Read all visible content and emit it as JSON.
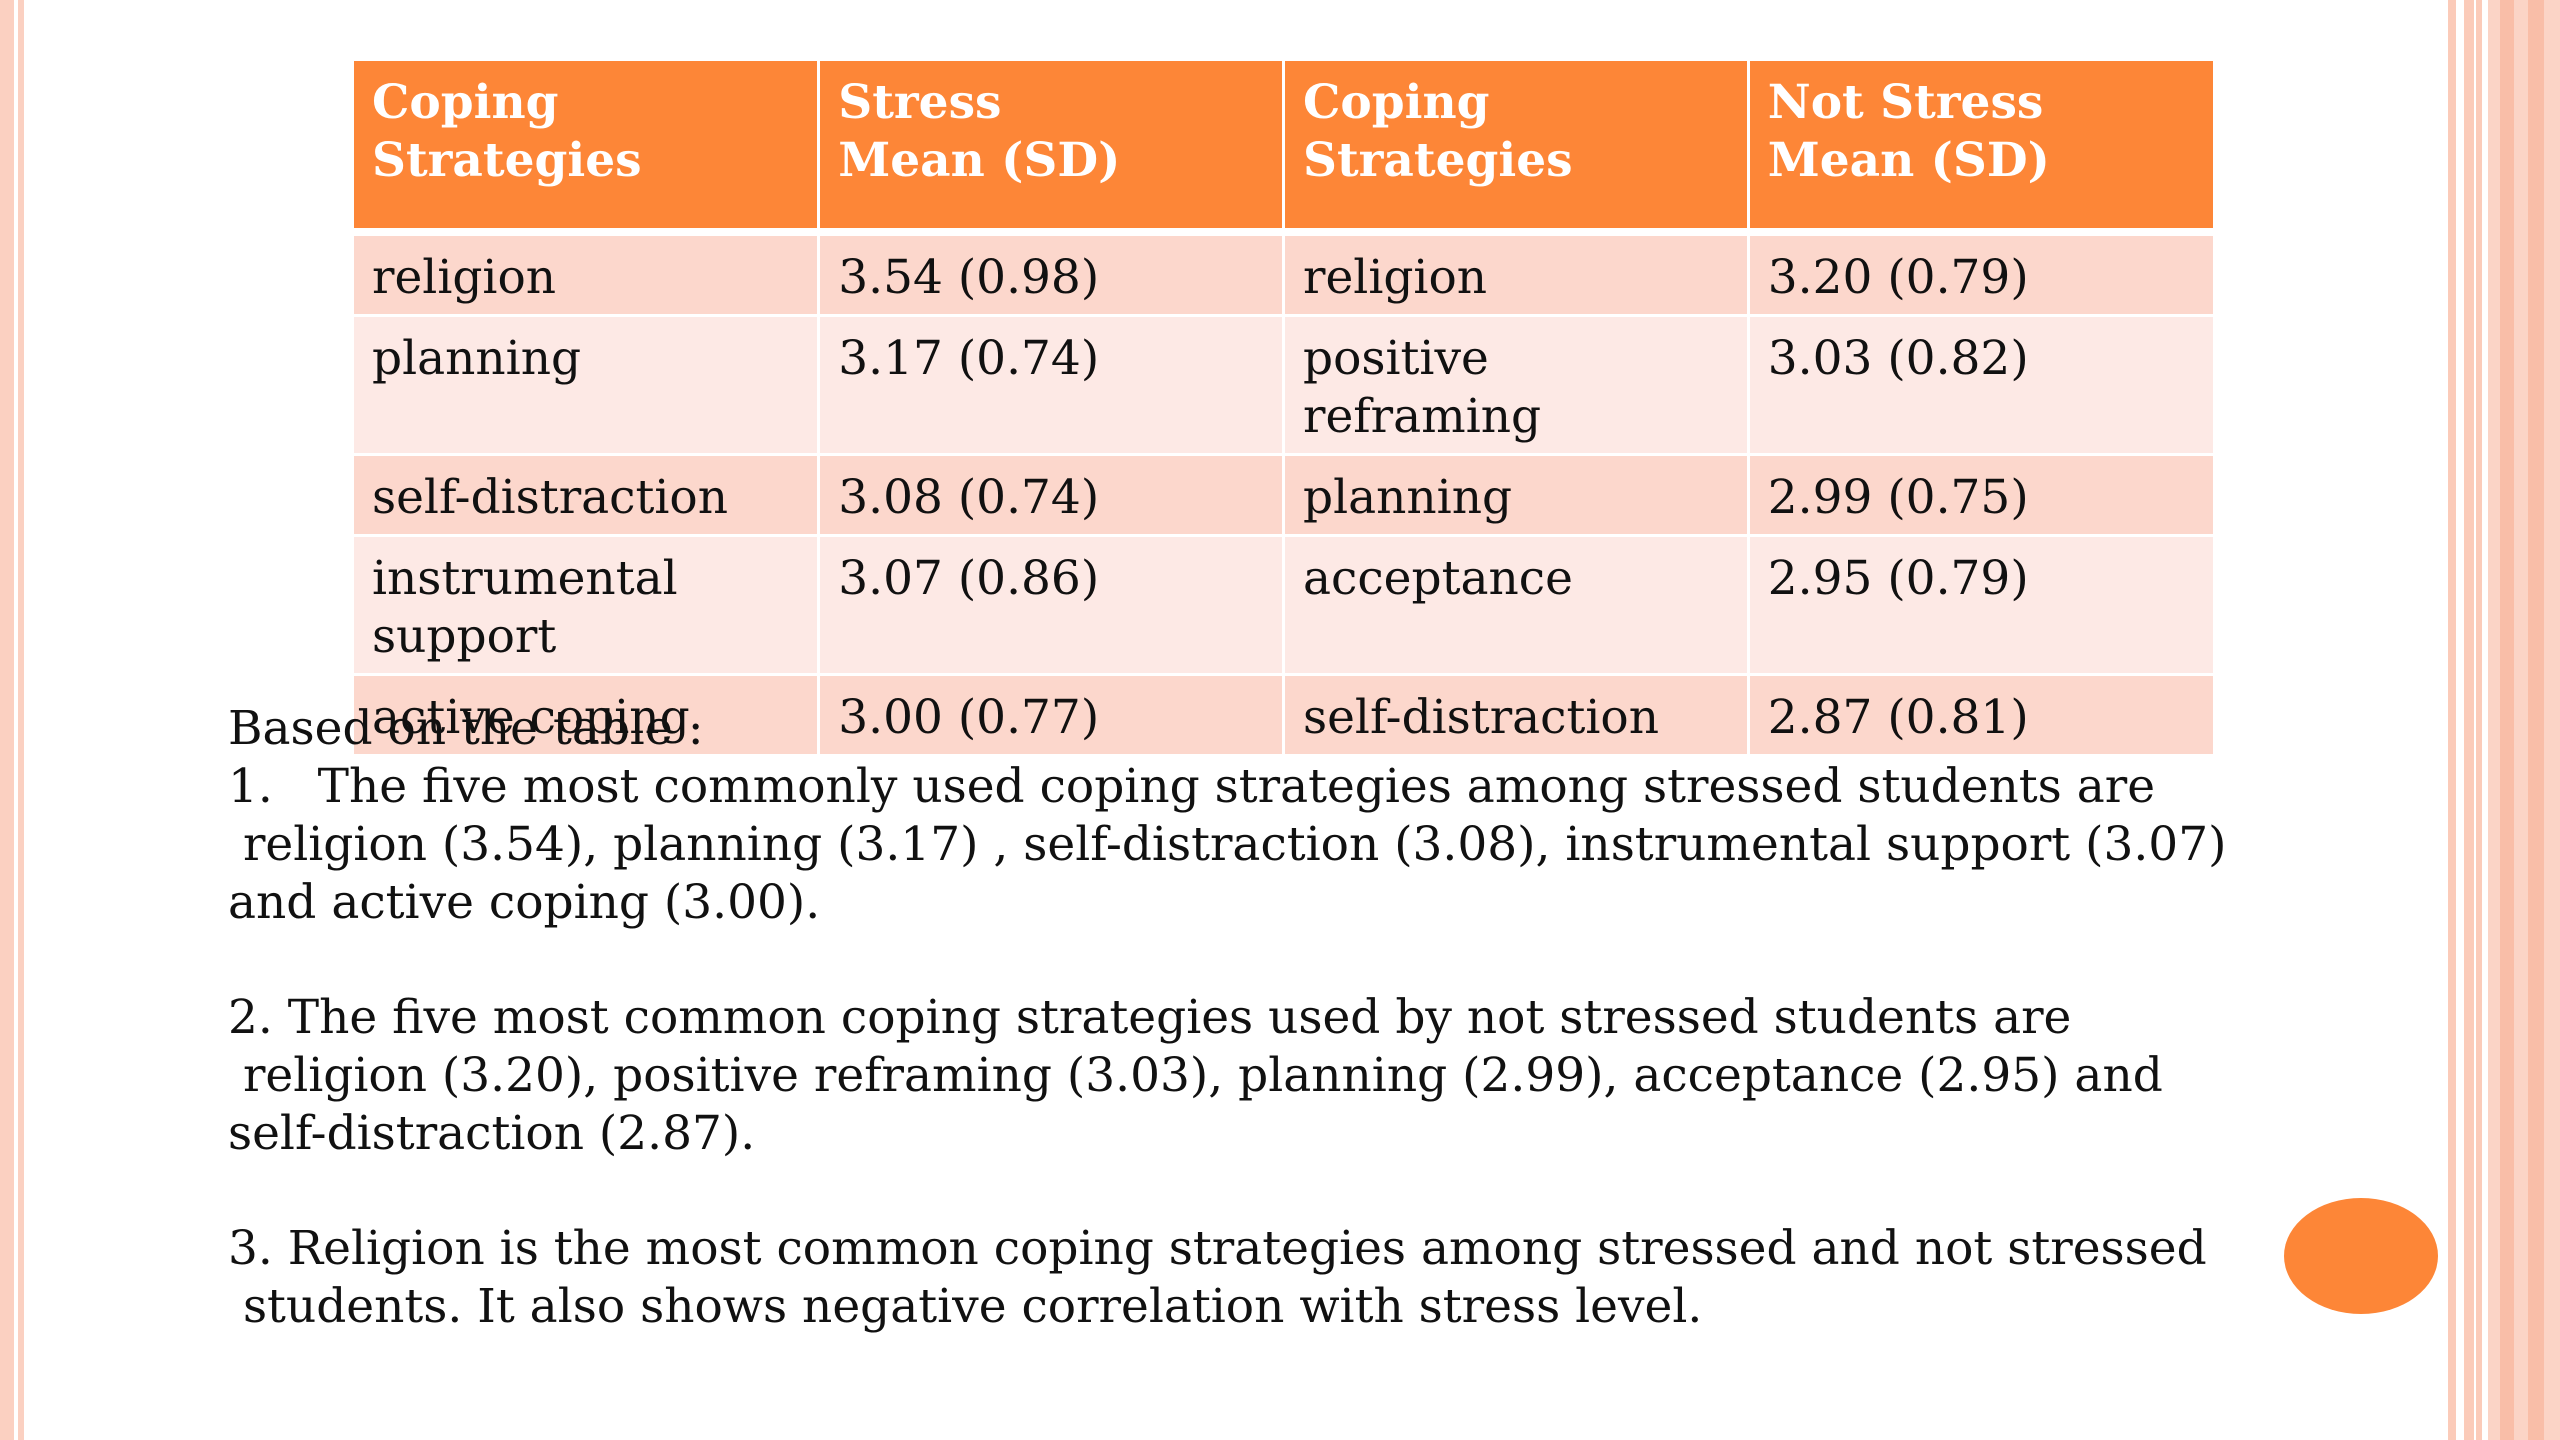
{
  "table": {
    "headers": [
      [
        "Coping",
        "Strategies"
      ],
      [
        "Stress",
        "Mean (SD)"
      ],
      [
        "Coping",
        "Strategies"
      ],
      [
        "Not Stress",
        "Mean (SD)"
      ]
    ],
    "rows": [
      [
        "religion",
        "3.54 (0.98)",
        "religion",
        "3.20 (0.79)"
      ],
      [
        "planning",
        "3.17 (0.74)",
        "positive reframing",
        "3.03 (0.82)"
      ],
      [
        "self-distraction",
        "3.08 (0.74)",
        "planning",
        "2.99 (0.75)"
      ],
      [
        "instrumental support",
        "3.07 (0.86)",
        "acceptance",
        "2.95 (0.79)"
      ],
      [
        "active coping",
        "3.00 (0.77)",
        "self-distraction",
        "2.87 (0.81)"
      ]
    ]
  },
  "notes": {
    "intro": "Based on the table :",
    "point1": {
      "line1": "1.   The five most commonly used coping strategies among stressed students are",
      "line2": " religion (3.54), planning (3.17) , self-distraction (3.08), instrumental support (3.07)",
      "line3": "and active coping (3.00)."
    },
    "point2": {
      "line1": "2. The five most common coping strategies used by not stressed students are",
      "line2": " religion (3.20), positive reframing (3.03), planning (2.99), acceptance (2.95) and",
      "line3": "self-distraction (2.87)."
    },
    "point3": {
      "line1": "3. Religion is the most common coping strategies among stressed and not stressed",
      "line2": " students. It also shows negative correlation with stress level."
    }
  },
  "colors": {
    "header_orange": "#fd8637",
    "row_odd": "#fcd7cc",
    "row_even": "#fde9e5",
    "border_stripe": "#fbd0c1"
  }
}
